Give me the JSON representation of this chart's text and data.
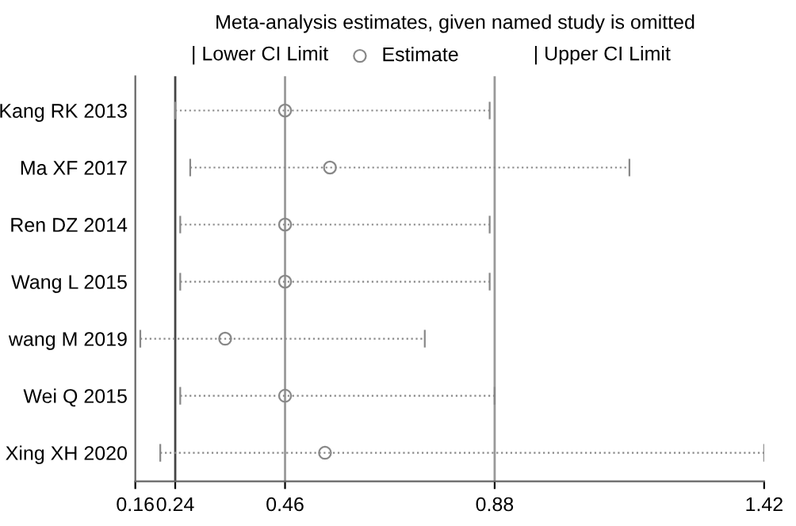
{
  "chart_data": {
    "type": "scatter",
    "orientation": "horizontal",
    "title": "Meta-analysis estimates, given named study is omitted",
    "categories": [
      "Kang RK 2013",
      "Ma XF 2017",
      "Ren DZ 2014",
      "Wang L 2015",
      "wang M 2019",
      "Wei Q 2015",
      "Xing XH 2020"
    ],
    "series": [
      {
        "name": "Estimate",
        "color": "#888888",
        "marker": "circle",
        "values": [
          0.46,
          0.55,
          0.46,
          0.46,
          0.34,
          0.46,
          0.54
        ],
        "errors": [
          [
            0.24,
            0.87
          ],
          [
            0.27,
            1.15
          ],
          [
            0.25,
            0.87
          ],
          [
            0.25,
            0.87
          ],
          [
            0.17,
            0.74
          ],
          [
            0.25,
            0.88
          ],
          [
            0.21,
            1.42
          ]
        ]
      }
    ],
    "annotations": [
      "| Lower CI Limit",
      "| Upper CI Limit"
    ],
    "xlim": [
      0.16,
      1.42
    ],
    "xticks": [
      0.16,
      0.24,
      0.46,
      0.88,
      1.42
    ],
    "ref_lines": [
      {
        "axis": "x",
        "value": 0.24,
        "color": "#444444"
      },
      {
        "axis": "x",
        "value": 0.46,
        "color": "#999999"
      },
      {
        "axis": "x",
        "value": 0.88,
        "color": "#999999"
      }
    ],
    "legend": "top",
    "grid": false
  }
}
